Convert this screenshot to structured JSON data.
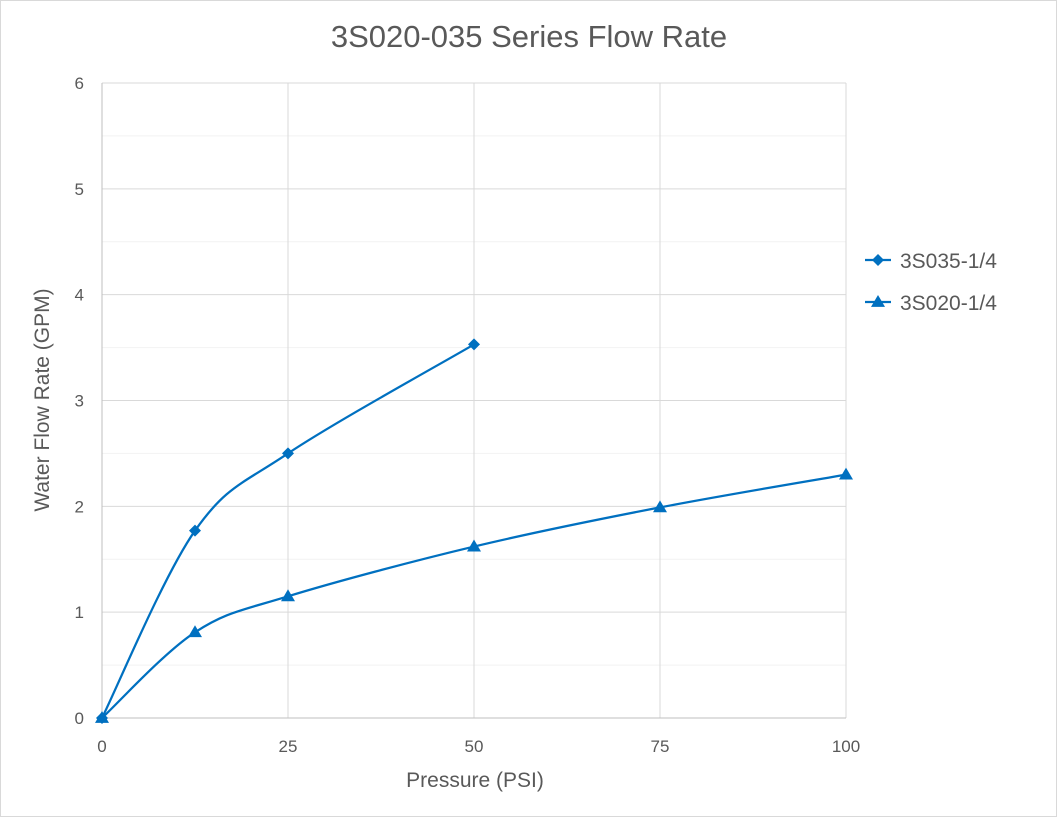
{
  "chart_data": {
    "type": "line",
    "title": "3S020-035 Series Flow Rate",
    "xlabel": "Pressure (PSI)",
    "ylabel": "Water Flow Rate (GPM)",
    "xlim": [
      0,
      100
    ],
    "ylim": [
      0,
      6
    ],
    "xticks": [
      0,
      25,
      50,
      75,
      100
    ],
    "yticks": [
      0,
      1,
      2,
      3,
      4,
      5,
      6
    ],
    "grid": true,
    "smooth": true,
    "legend_position": "right",
    "series": [
      {
        "name": "3S035-1/4",
        "marker": "diamond",
        "color": "#0070c0",
        "x": [
          0,
          12.5,
          25,
          50
        ],
        "y": [
          0,
          1.77,
          2.5,
          3.53
        ]
      },
      {
        "name": "3S020-1/4",
        "marker": "triangle",
        "color": "#0070c0",
        "x": [
          0,
          12.5,
          25,
          50,
          75,
          100
        ],
        "y": [
          0,
          0.81,
          1.15,
          1.62,
          1.99,
          2.3
        ]
      }
    ]
  }
}
